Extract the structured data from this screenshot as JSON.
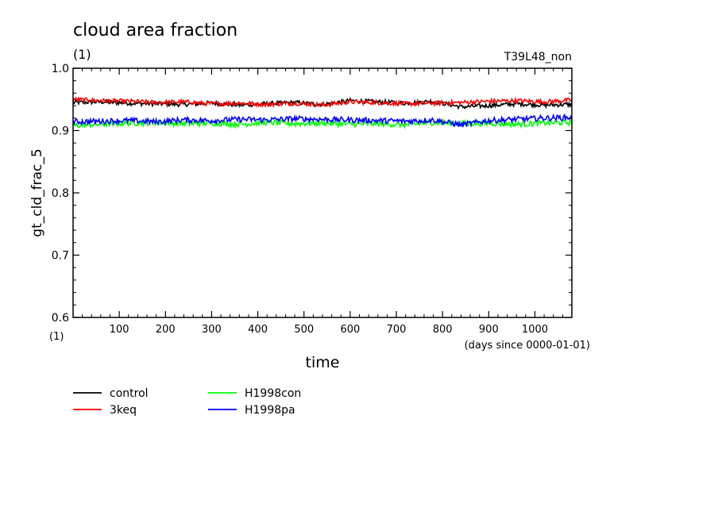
{
  "chart_data": {
    "type": "line",
    "title": "cloud area fraction",
    "units_label": "(1)",
    "run_label": "T39L48_non",
    "xlabel": "time",
    "xunit": "(days since 0000-01-01)",
    "ylabel": "gt_cld_frac_5",
    "y_unit_label": "(1)",
    "xlim": [
      0,
      1080
    ],
    "ylim": [
      0.6,
      1.0
    ],
    "x_ticks": [
      100,
      200,
      300,
      400,
      500,
      600,
      700,
      800,
      900,
      1000
    ],
    "x_tick_labels": [
      "100",
      "200",
      "300",
      "400",
      "500",
      "600",
      "700",
      "800",
      "900",
      "1000"
    ],
    "y_ticks": [
      0.6,
      0.7,
      0.8,
      0.9,
      1.0
    ],
    "y_tick_labels": [
      "0.6",
      "0.7",
      "0.8",
      "0.9",
      "1.0"
    ],
    "grid": false,
    "legend_position": "bottom-left",
    "series": [
      {
        "name": "control",
        "color": "#000000",
        "x": [
          0,
          60,
          120,
          180,
          240,
          300,
          360,
          420,
          480,
          540,
          600,
          660,
          720,
          780,
          840,
          900,
          960,
          1020,
          1080
        ],
        "values": [
          0.945,
          0.946,
          0.944,
          0.943,
          0.942,
          0.944,
          0.941,
          0.943,
          0.945,
          0.942,
          0.948,
          0.946,
          0.944,
          0.947,
          0.938,
          0.94,
          0.943,
          0.941,
          0.942
        ]
      },
      {
        "name": "3keq",
        "color": "#ff0000",
        "x": [
          0,
          60,
          120,
          180,
          240,
          300,
          360,
          420,
          480,
          540,
          600,
          660,
          720,
          780,
          840,
          900,
          960,
          1020,
          1080
        ],
        "values": [
          0.95,
          0.948,
          0.947,
          0.945,
          0.946,
          0.943,
          0.944,
          0.942,
          0.944,
          0.941,
          0.946,
          0.945,
          0.943,
          0.944,
          0.945,
          0.947,
          0.948,
          0.946,
          0.949
        ]
      },
      {
        "name": "H1998con",
        "color": "#00ff00",
        "x": [
          0,
          60,
          120,
          180,
          240,
          300,
          360,
          420,
          480,
          540,
          600,
          660,
          720,
          780,
          840,
          900,
          960,
          1020,
          1080
        ],
        "values": [
          0.908,
          0.91,
          0.912,
          0.913,
          0.911,
          0.912,
          0.91,
          0.913,
          0.911,
          0.912,
          0.91,
          0.911,
          0.909,
          0.913,
          0.911,
          0.912,
          0.91,
          0.912,
          0.913
        ]
      },
      {
        "name": "H1998pa",
        "color": "#0000ff",
        "x": [
          0,
          60,
          120,
          180,
          240,
          300,
          360,
          420,
          480,
          540,
          600,
          660,
          720,
          780,
          840,
          900,
          960,
          1020,
          1080
        ],
        "values": [
          0.914,
          0.915,
          0.916,
          0.914,
          0.917,
          0.916,
          0.918,
          0.917,
          0.919,
          0.918,
          0.917,
          0.916,
          0.915,
          0.917,
          0.909,
          0.916,
          0.918,
          0.92,
          0.921
        ]
      }
    ]
  }
}
